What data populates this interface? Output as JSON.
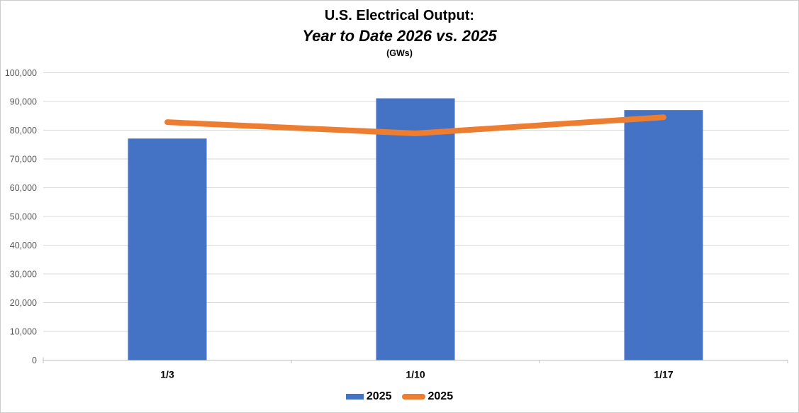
{
  "title": {
    "line1": "U.S. Electrical Output:",
    "line2": "Year to Date 2026 vs. 2025",
    "line3": "(GWs)"
  },
  "colors": {
    "bar_series": "#4472C4",
    "line_series": "#ED7D31",
    "gridline": "#D9D9D9",
    "axis_line": "#BFBFBF",
    "y_tick_label": "#595959",
    "x_category_label": "#000000",
    "canvas_border": "#CDCDCD"
  },
  "legend": {
    "items": [
      {
        "label": "2025",
        "marker": "bar"
      },
      {
        "label": "2025",
        "marker": "line"
      }
    ],
    "position": "bottom-center"
  },
  "chart_data": {
    "type": "bar",
    "subtype": "bar-and-line-combo",
    "title": "U.S. Electrical Output:",
    "subtitle": "Year to Date 2026 vs. 2025",
    "units_label": "(GWs)",
    "categories": [
      "1/3",
      "1/10",
      "1/17"
    ],
    "series": [
      {
        "name": "2025",
        "type": "bar",
        "color": "#4472C4",
        "values": [
          77100,
          91100,
          87000
        ]
      },
      {
        "name": "2025",
        "type": "line",
        "color": "#ED7D31",
        "values": [
          82800,
          78900,
          84500
        ]
      }
    ],
    "xlabel": "",
    "ylabel": "",
    "ylim": [
      0,
      100000
    ],
    "ytick_interval": 10000,
    "ytick_labels": [
      "0",
      "10,000",
      "20,000",
      "30,000",
      "40,000",
      "50,000",
      "60,000",
      "70,000",
      "80,000",
      "90,000",
      "100,000"
    ],
    "grid": true,
    "legend_position": "bottom-center"
  }
}
